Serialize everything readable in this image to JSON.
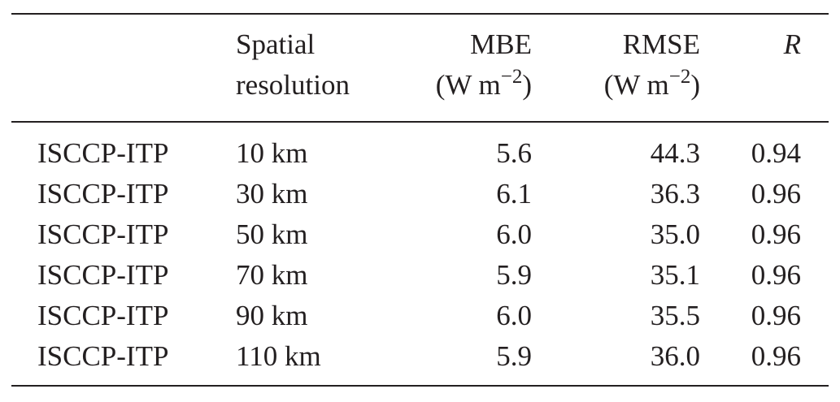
{
  "table": {
    "headers": {
      "product": "",
      "spatial_resolution_line1": "Spatial",
      "spatial_resolution_line2": "resolution",
      "mbe": "MBE",
      "mbe_unit_base": "(W m",
      "mbe_unit_exp": "−2",
      "mbe_unit_close": ")",
      "rmse": "RMSE",
      "rmse_unit_base": "(W m",
      "rmse_unit_exp": "−2",
      "rmse_unit_close": ")",
      "r": "R"
    },
    "rows": [
      {
        "product": "ISCCP-ITP",
        "resolution": "10 km",
        "mbe": "5.6",
        "rmse": "44.3",
        "r": "0.94"
      },
      {
        "product": "ISCCP-ITP",
        "resolution": "30 km",
        "mbe": "6.1",
        "rmse": "36.3",
        "r": "0.96"
      },
      {
        "product": "ISCCP-ITP",
        "resolution": "50 km",
        "mbe": "6.0",
        "rmse": "35.0",
        "r": "0.96"
      },
      {
        "product": "ISCCP-ITP",
        "resolution": "70 km",
        "mbe": "5.9",
        "rmse": "35.1",
        "r": "0.96"
      },
      {
        "product": "ISCCP-ITP",
        "resolution": "90 km",
        "mbe": "6.0",
        "rmse": "35.5",
        "r": "0.96"
      },
      {
        "product": "ISCCP-ITP",
        "resolution": "110 km",
        "mbe": "5.9",
        "rmse": "36.0",
        "r": "0.96"
      }
    ]
  }
}
